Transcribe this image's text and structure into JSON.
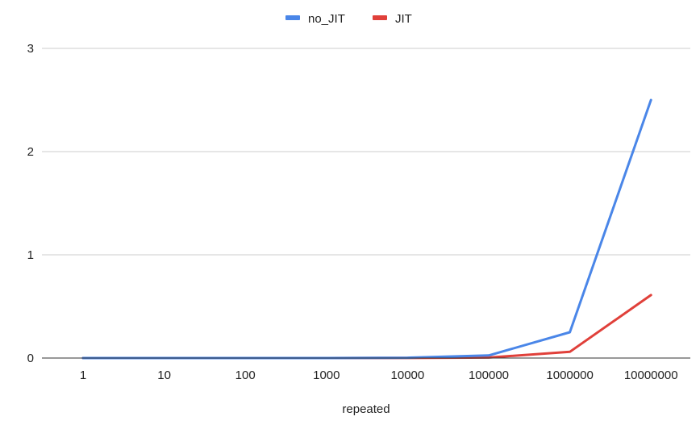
{
  "chart_data": {
    "type": "line",
    "title": "",
    "xlabel": "repeated",
    "ylabel": "",
    "categories": [
      "1",
      "10",
      "100",
      "1000",
      "10000",
      "100000",
      "1000000",
      "10000000"
    ],
    "y_ticks": [
      "0",
      "1",
      "2",
      "3"
    ],
    "ylim": [
      0,
      3
    ],
    "grid": true,
    "legend_position": "top",
    "series": [
      {
        "name": "no_JIT",
        "color": "#4a86e8",
        "values": [
          0.0,
          0.0,
          0.0,
          0.0,
          0.003,
          0.025,
          0.25,
          2.5
        ]
      },
      {
        "name": "JIT",
        "color": "#e0403a",
        "values": [
          0.0,
          0.0,
          0.0,
          0.0,
          0.001,
          0.005,
          0.06,
          0.61
        ]
      }
    ]
  }
}
